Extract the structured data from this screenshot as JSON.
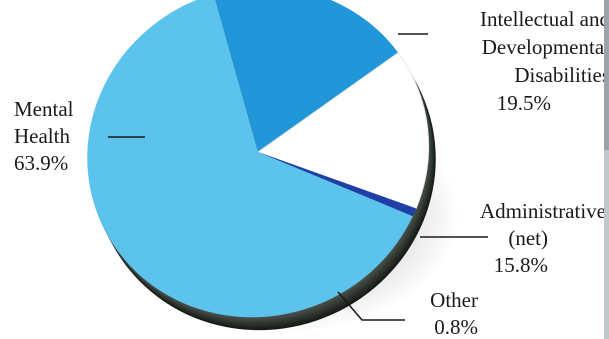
{
  "chart_data": {
    "type": "pie",
    "title": "",
    "slices": [
      {
        "key": "intellectual",
        "label": "Intellectual and Developmental Disabilities",
        "label_lines": [
          "Intellectual and",
          "Developmental",
          "Disabilities"
        ],
        "value": 19.5,
        "value_text": "19.5%",
        "color": "#2196d8"
      },
      {
        "key": "administrative",
        "label": "Administrative (net)",
        "label_lines": [
          "Administrative",
          "(net)"
        ],
        "value": 15.8,
        "value_text": "15.8%",
        "color": "#ffffff"
      },
      {
        "key": "other",
        "label": "Other",
        "label_lines": [
          "Other"
        ],
        "value": 0.8,
        "value_text": "0.8%",
        "color": "#1f3fa8"
      },
      {
        "key": "mental",
        "label": "Mental Health",
        "label_lines": [
          "Mental",
          "Health"
        ],
        "value": 63.9,
        "value_text": "63.9%",
        "color": "#5cc3ec"
      }
    ],
    "legend": "none",
    "style": "3d-tilted"
  }
}
